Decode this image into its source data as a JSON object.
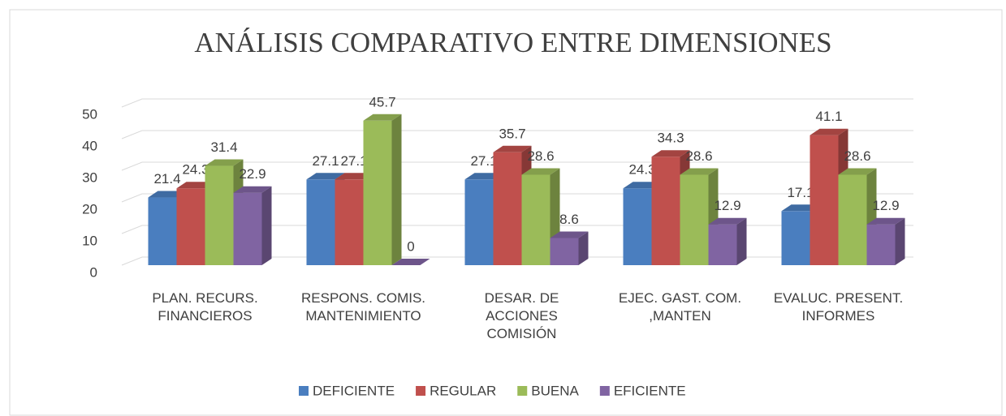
{
  "chart_data": {
    "type": "bar3d",
    "title": "ANÁLISIS COMPARATIVO ENTRE DIMENSIONES",
    "categories": [
      "PLAN. RECURS. FINANCIEROS",
      "RESPONS. COMIS. MANTENIMIENTO",
      "DESAR. DE ACCIONES COMISIÓN",
      "EJEC. GAST. COM. ,MANTEN",
      "EVALUC. PRESENT. INFORMES"
    ],
    "series": [
      {
        "name": "DEFICIENTE",
        "color": "#4a7ebf",
        "values": [
          21.4,
          27.1,
          27.1,
          24.3,
          17.1
        ]
      },
      {
        "name": "REGULAR",
        "color": "#c0504d",
        "values": [
          24.3,
          27.1,
          35.7,
          34.3,
          41.1
        ]
      },
      {
        "name": "BUENA",
        "color": "#9bbb59",
        "values": [
          31.4,
          45.7,
          28.6,
          28.6,
          28.6
        ]
      },
      {
        "name": "EFICIENTE",
        "color": "#8064a2",
        "values": [
          22.9,
          0,
          8.6,
          12.9,
          12.9
        ]
      }
    ],
    "ylim": [
      0,
      50
    ],
    "yticks": [
      0,
      10,
      20,
      30,
      40,
      50
    ],
    "grid": true,
    "legend": "bottom"
  }
}
